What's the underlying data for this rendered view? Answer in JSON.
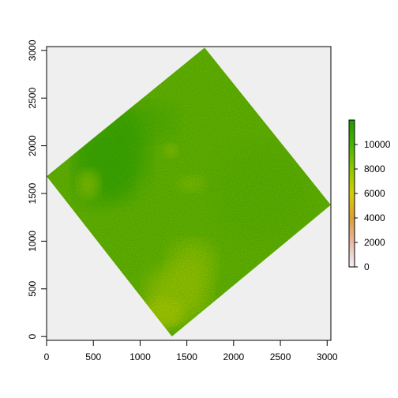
{
  "chart_data": {
    "type": "heatmap",
    "title": "",
    "xlabel": "",
    "ylabel": "",
    "xlim": [
      0,
      3040
    ],
    "ylim": [
      -40,
      3040
    ],
    "x_ticks": [
      0,
      500,
      1000,
      1500,
      2000,
      2500,
      3000
    ],
    "y_ticks": [
      0,
      500,
      1000,
      1500,
      2000,
      2500,
      3000
    ],
    "x_tick_labels": [
      "0",
      "500",
      "1000",
      "1500",
      "2000",
      "2500",
      "3000"
    ],
    "y_tick_labels": [
      "0",
      "500",
      "1000",
      "1500",
      "2000",
      "2500",
      "3000"
    ],
    "raster_footprint": [
      [
        1340,
        0
      ],
      [
        3040,
        1380
      ],
      [
        1690,
        3030
      ],
      [
        0,
        1680
      ]
    ],
    "nodata_color": "#efefef",
    "colorbar": {
      "range": [
        0,
        12000
      ],
      "ticks": [
        0,
        2000,
        4000,
        6000,
        8000,
        10000
      ],
      "tick_labels": [
        "0",
        "2000",
        "4000",
        "6000",
        "8000",
        "10000"
      ],
      "gradient": [
        {
          "value": 0,
          "color": "#f2f2f2"
        },
        {
          "value": 2000,
          "color": "#e8b8a8"
        },
        {
          "value": 4000,
          "color": "#dd9f36"
        },
        {
          "value": 6000,
          "color": "#d6cf00"
        },
        {
          "value": 8000,
          "color": "#8ec800"
        },
        {
          "value": 10000,
          "color": "#4cb300"
        },
        {
          "value": 12000,
          "color": "#1f9a00"
        }
      ]
    },
    "colors": {
      "main": "#6cbd00",
      "dark": "#3fae00",
      "light": "#a6d000"
    }
  }
}
